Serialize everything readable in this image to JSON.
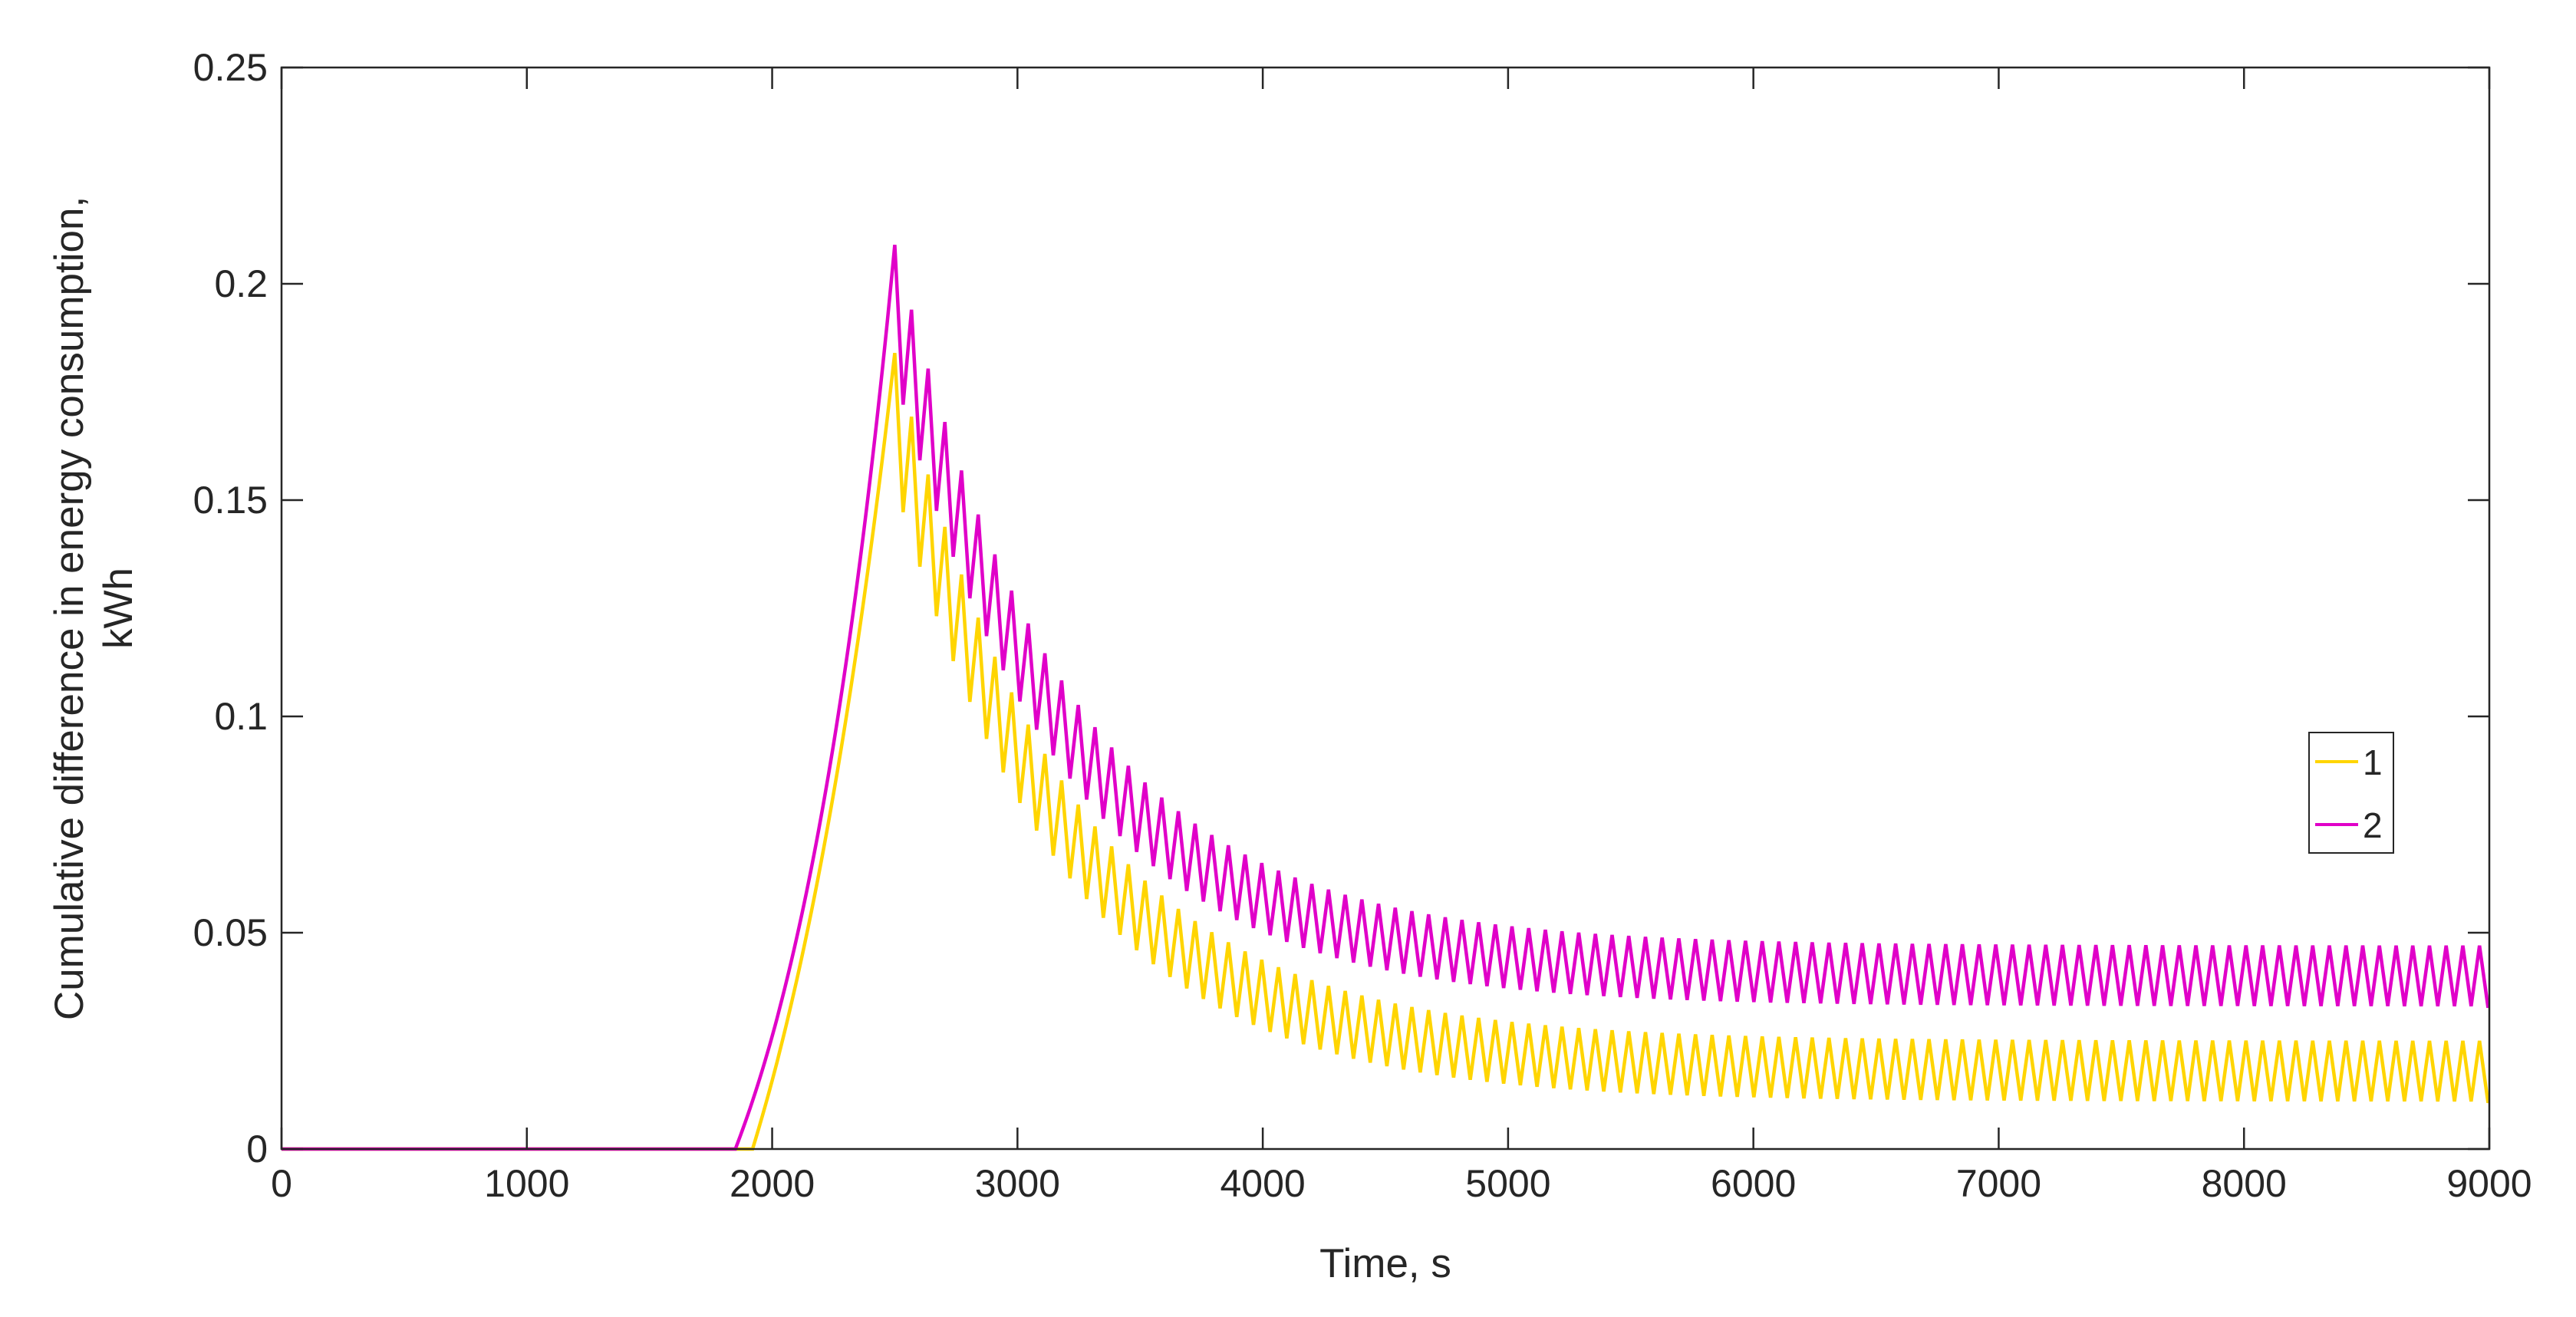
{
  "chart_data": {
    "type": "line",
    "title": "",
    "xlabel": "Time, s",
    "ylabel_lines": [
      "Cumulative difference in energy consumption,",
      "kWh"
    ],
    "xlim": [
      0,
      9000
    ],
    "ylim": [
      0,
      0.25
    ],
    "xticks": [
      0,
      1000,
      2000,
      3000,
      4000,
      5000,
      6000,
      7000,
      8000,
      9000
    ],
    "yticks": [
      0,
      0.05,
      0.1,
      0.15,
      0.2,
      0.25
    ],
    "xtick_labels": [
      "0",
      "1000",
      "2000",
      "3000",
      "4000",
      "5000",
      "6000",
      "7000",
      "8000",
      "9000"
    ],
    "ytick_labels": [
      "0",
      "0.05",
      "0.1",
      "0.15",
      "0.2",
      "0.25"
    ],
    "grid": false,
    "legend_position": "right",
    "oscillation_period_s": 68,
    "series": [
      {
        "name": "1",
        "color": "#FFD500",
        "onset_x": 1920,
        "rise_accel": 1.0,
        "peak": [
          2500,
          0.184
        ],
        "decay_tau_s": 700,
        "upper_floor": 0.025,
        "lower_floor": 0.011,
        "end": [
          9000,
          0.011
        ]
      },
      {
        "name": "2",
        "color": "#E000C8",
        "onset_x": 1850,
        "rise_accel": 1.4,
        "peak": [
          2500,
          0.209
        ],
        "decay_tau_s": 700,
        "upper_floor": 0.047,
        "lower_floor": 0.033,
        "end": [
          9000,
          0.033
        ]
      }
    ]
  }
}
